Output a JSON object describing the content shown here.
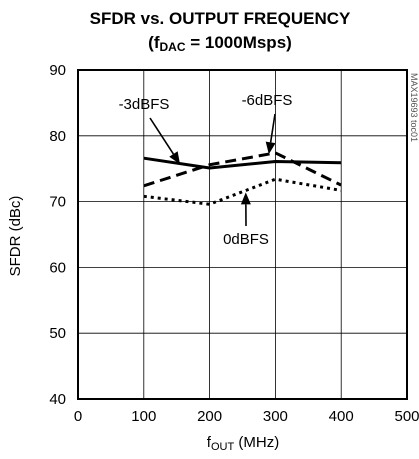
{
  "chart_data": {
    "type": "line",
    "title_line1": "SFDR vs. OUTPUT FREQUENCY",
    "title_line2_prefix": "(f",
    "title_line2_sub": "DAC",
    "title_line2_suffix": " = 1000Msps)",
    "xlabel_main": "f",
    "xlabel_sub": "OUT",
    "xlabel_unit": " (MHz)",
    "ylabel": "SFDR (dBc)",
    "xlim": [
      0,
      500
    ],
    "ylim": [
      40,
      90
    ],
    "x_ticks": [
      "0",
      "100",
      "200",
      "300",
      "400",
      "500"
    ],
    "y_ticks": [
      "40",
      "50",
      "60",
      "70",
      "80",
      "90"
    ],
    "grid": true,
    "series": [
      {
        "name": "-3dBFS",
        "style": "solid",
        "x": [
          100,
          200,
          300,
          400
        ],
        "y": [
          76.6,
          75.1,
          76.1,
          75.9
        ]
      },
      {
        "name": "-6dBFS",
        "style": "dashed",
        "x": [
          100,
          200,
          300,
          400
        ],
        "y": [
          72.4,
          75.6,
          77.4,
          72.5
        ]
      },
      {
        "name": "0dBFS",
        "style": "dotted",
        "x": [
          100,
          200,
          300,
          400
        ],
        "y": [
          70.8,
          69.6,
          73.4,
          71.7
        ]
      }
    ],
    "annotations": [
      {
        "text": "-3dBFS",
        "arrow_to": [
          155,
          75.7
        ]
      },
      {
        "text": "-6dBFS",
        "arrow_to": [
          290,
          77.2
        ]
      },
      {
        "text": "0dBFS",
        "arrow_to": [
          255,
          71.4
        ]
      }
    ],
    "part_number": "MAX19693 toc01"
  }
}
